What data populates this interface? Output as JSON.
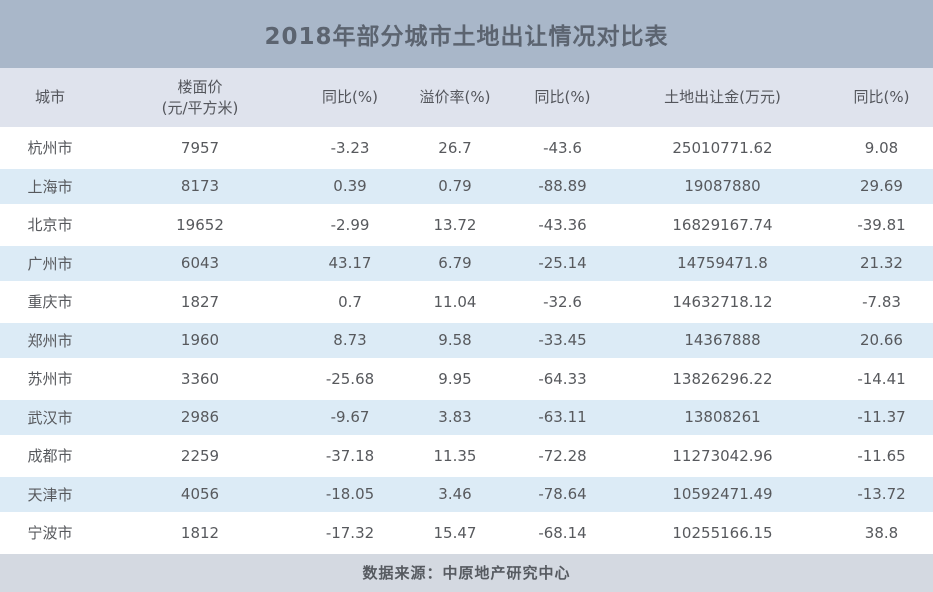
{
  "title": "2018年部分城市土地出让情况对比表",
  "header": {
    "cells": [
      {
        "line1": "城市",
        "line2": ""
      },
      {
        "line1": "楼面价",
        "line2": "(元/平方米)"
      },
      {
        "line1": "同比(%)",
        "line2": ""
      },
      {
        "line1": "溢价率(%)",
        "line2": ""
      },
      {
        "line1": "同比(%)",
        "line2": ""
      },
      {
        "line1": "土地出让金(万元)",
        "line2": ""
      },
      {
        "line1": "同比(%)",
        "line2": ""
      }
    ]
  },
  "chart_data": {
    "type": "table",
    "title": "2018年部分城市土地出让情况对比表",
    "columns": [
      "城市",
      "楼面价(元/平方米)",
      "同比(%)",
      "溢价率(%)",
      "同比(%)",
      "土地出让金(万元)",
      "同比(%)"
    ],
    "rows": [
      [
        "杭州市",
        "7957",
        "-3.23",
        "26.7",
        "-43.6",
        "25010771.62",
        "9.08"
      ],
      [
        "上海市",
        "8173",
        "0.39",
        "0.79",
        "-88.89",
        "19087880",
        "29.69"
      ],
      [
        "北京市",
        "19652",
        "-2.99",
        "13.72",
        "-43.36",
        "16829167.74",
        "-39.81"
      ],
      [
        "广州市",
        "6043",
        "43.17",
        "6.79",
        "-25.14",
        "14759471.8",
        "21.32"
      ],
      [
        "重庆市",
        "1827",
        "0.7",
        "11.04",
        "-32.6",
        "14632718.12",
        "-7.83"
      ],
      [
        "郑州市",
        "1960",
        "8.73",
        "9.58",
        "-33.45",
        "14367888",
        "20.66"
      ],
      [
        "苏州市",
        "3360",
        "-25.68",
        "9.95",
        "-64.33",
        "13826296.22",
        "-14.41"
      ],
      [
        "武汉市",
        "2986",
        "-9.67",
        "3.83",
        "-63.11",
        "13808261",
        "-11.37"
      ],
      [
        "成都市",
        "2259",
        "-37.18",
        "11.35",
        "-72.28",
        "11273042.96",
        "-11.65"
      ],
      [
        "天津市",
        "4056",
        "-18.05",
        "3.46",
        "-78.64",
        "10592471.49",
        "-13.72"
      ],
      [
        "宁波市",
        "1812",
        "-17.32",
        "15.47",
        "-68.14",
        "10255166.15",
        "38.8"
      ]
    ],
    "source_note": "数据来源：中原地产研究中心"
  },
  "footer": {
    "source_label": "数据来源：中原地产研究中心"
  },
  "colors": {
    "title_bar_bg": "#a9b7c9",
    "title_text": "#5c6470",
    "header_bg": "#dfe3ed",
    "header_text": "#54565c",
    "row_bg": "#ffffff",
    "row_alt_bg": "#dcebf6",
    "row_text": "#57595d",
    "footer_bg": "#d4d9e1",
    "footer_text": "#565a60"
  }
}
